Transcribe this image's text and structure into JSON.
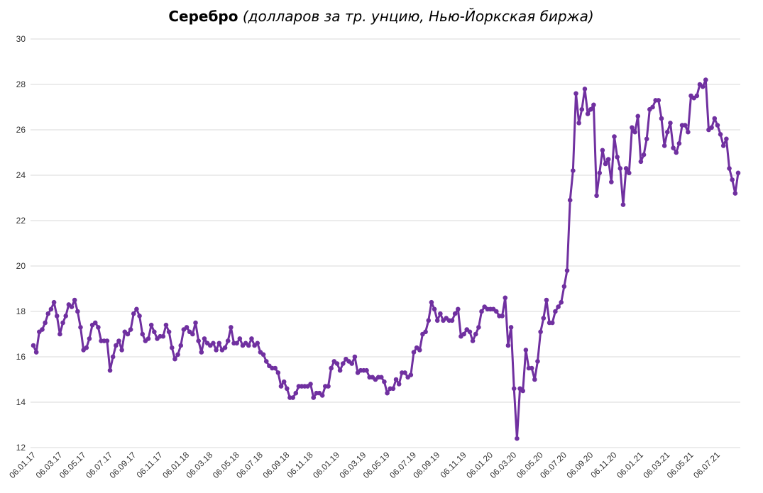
{
  "chart_data": {
    "type": "line",
    "title": "Серебро",
    "subtitle": "(долларов за тр. унцию, Нью-Йоркская биржа)",
    "categories": [
      "06.01.17",
      null,
      null,
      null,
      null,
      null,
      null,
      null,
      null,
      "06.03.17",
      null,
      null,
      null,
      null,
      null,
      null,
      null,
      "06.05.17",
      null,
      null,
      null,
      null,
      null,
      null,
      null,
      null,
      "06.07.17",
      null,
      null,
      null,
      null,
      null,
      null,
      null,
      "06.09.17",
      null,
      null,
      null,
      null,
      null,
      null,
      null,
      null,
      "06.11.17",
      null,
      null,
      null,
      null,
      null,
      null,
      null,
      null,
      "06.01.18",
      null,
      null,
      null,
      null,
      null,
      null,
      null,
      "06.03.18",
      null,
      null,
      null,
      null,
      null,
      null,
      null,
      null,
      "06.05.18",
      null,
      null,
      null,
      null,
      null,
      null,
      null,
      "06.07.18",
      null,
      null,
      null,
      null,
      null,
      null,
      null,
      null,
      "06.09.18",
      null,
      null,
      null,
      null,
      null,
      null,
      null,
      "06.11.18",
      null,
      null,
      null,
      null,
      null,
      null,
      null,
      null,
      "06.01.19",
      null,
      null,
      null,
      null,
      null,
      null,
      null,
      null,
      "06.03.19",
      null,
      null,
      null,
      null,
      null,
      null,
      null,
      "06.05.19",
      null,
      null,
      null,
      null,
      null,
      null,
      null,
      null,
      "06.07.19",
      null,
      null,
      null,
      null,
      null,
      null,
      null,
      "06.09.19",
      null,
      null,
      null,
      null,
      null,
      null,
      null,
      null,
      "06.11.19",
      null,
      null,
      null,
      null,
      null,
      null,
      null,
      null,
      "06.01.20",
      null,
      null,
      null,
      null,
      null,
      null,
      null,
      "06.03.20",
      null,
      null,
      null,
      null,
      null,
      null,
      null,
      null,
      "06.05.20",
      null,
      null,
      null,
      null,
      null,
      null,
      null,
      "06.07.20",
      null,
      null,
      null,
      null,
      null,
      null,
      null,
      null,
      "06.09.20",
      null,
      null,
      null,
      null,
      null,
      null,
      null,
      "06.11.20",
      null,
      null,
      null,
      null,
      null,
      null,
      null,
      null,
      "06.01.21",
      null,
      null,
      null,
      null,
      null,
      null,
      null,
      null,
      "06.03.21",
      null,
      null,
      null,
      null,
      null,
      null,
      null,
      "06.05.21",
      null,
      null,
      null,
      null,
      null,
      null,
      null,
      null,
      "06.07.21",
      null,
      null,
      null,
      null,
      null,
      null,
      null
    ],
    "series": [
      {
        "name": "Серебро",
        "color": "#7030a0",
        "values": [
          16.5,
          16.2,
          17.1,
          17.2,
          17.5,
          17.9,
          18.1,
          18.4,
          17.8,
          17.0,
          17.5,
          17.8,
          18.3,
          18.2,
          18.5,
          18.0,
          17.3,
          16.3,
          16.4,
          16.8,
          17.4,
          17.5,
          17.3,
          16.7,
          16.7,
          16.7,
          15.4,
          16.0,
          16.5,
          16.7,
          16.3,
          17.1,
          17.0,
          17.2,
          17.9,
          18.1,
          17.8,
          17.0,
          16.7,
          16.8,
          17.4,
          17.1,
          16.8,
          16.9,
          16.9,
          17.4,
          17.1,
          16.4,
          15.9,
          16.1,
          16.5,
          17.2,
          17.3,
          17.1,
          17.0,
          17.5,
          16.7,
          16.2,
          16.8,
          16.6,
          16.5,
          16.6,
          16.3,
          16.6,
          16.3,
          16.4,
          16.7,
          17.3,
          16.6,
          16.6,
          16.8,
          16.5,
          16.6,
          16.5,
          16.8,
          16.5,
          16.6,
          16.2,
          16.1,
          15.8,
          15.6,
          15.5,
          15.5,
          15.3,
          14.7,
          14.9,
          14.6,
          14.2,
          14.2,
          14.4,
          14.7,
          14.7,
          14.7,
          14.7,
          14.8,
          14.2,
          14.4,
          14.4,
          14.3,
          14.7,
          14.7,
          15.5,
          15.8,
          15.7,
          15.4,
          15.7,
          15.9,
          15.8,
          15.7,
          16.0,
          15.3,
          15.4,
          15.4,
          15.4,
          15.1,
          15.1,
          15.0,
          15.1,
          15.1,
          14.9,
          14.4,
          14.6,
          14.6,
          15.0,
          14.8,
          15.3,
          15.3,
          15.1,
          15.2,
          16.2,
          16.4,
          16.3,
          17.0,
          17.1,
          17.6,
          18.4,
          18.1,
          17.6,
          17.9,
          17.6,
          17.7,
          17.6,
          17.6,
          17.9,
          18.1,
          16.9,
          17.0,
          17.2,
          17.1,
          16.7,
          17.0,
          17.3,
          18.0,
          18.2,
          18.1,
          18.1,
          18.1,
          18.0,
          17.8,
          17.8,
          18.6,
          16.5,
          17.3,
          14.6,
          12.4,
          14.6,
          14.5,
          16.3,
          15.5,
          15.5,
          15.0,
          15.8,
          17.1,
          17.7,
          18.5,
          17.5,
          17.5,
          18.0,
          18.2,
          18.4,
          19.1,
          19.8,
          22.9,
          24.2,
          27.6,
          26.3,
          26.9,
          27.8,
          26.7,
          26.9,
          27.1,
          23.1,
          24.1,
          25.1,
          24.5,
          24.7,
          23.7,
          25.7,
          24.8,
          24.3,
          22.7,
          24.3,
          24.1,
          26.1,
          25.9,
          26.6,
          24.6,
          24.9,
          25.6,
          26.9,
          27.0,
          27.3,
          27.3,
          26.5,
          25.3,
          25.9,
          26.3,
          25.2,
          25.0,
          25.4,
          26.2,
          26.2,
          25.9,
          27.5,
          27.4,
          27.5,
          28.0,
          27.9,
          28.2,
          26.0,
          26.1,
          26.5,
          26.2,
          25.8,
          25.3,
          25.6,
          24.3,
          23.8,
          23.2,
          24.1
        ]
      }
    ],
    "ylim": [
      12,
      30
    ],
    "yticks": [
      12,
      14,
      16,
      18,
      20,
      22,
      24,
      26,
      28,
      30
    ],
    "grid": true
  }
}
